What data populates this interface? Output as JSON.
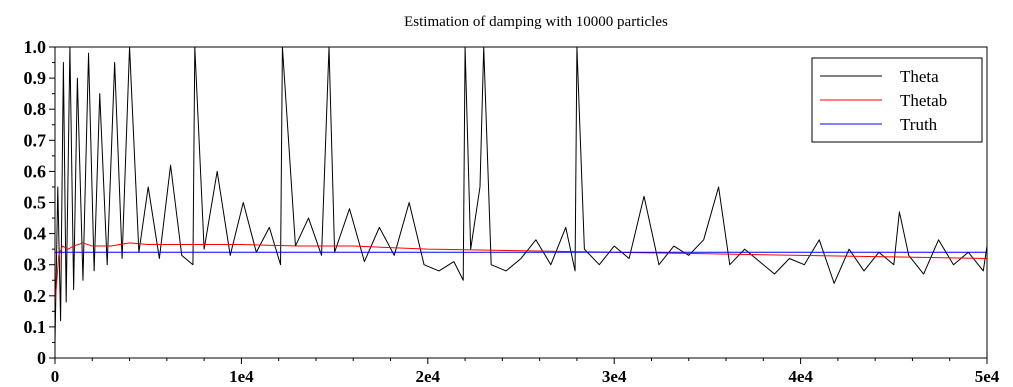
{
  "chart_data": {
    "type": "line",
    "title": "Estimation of damping with 10000 particles",
    "xlabel": "",
    "ylabel": "",
    "xlim": [
      0,
      50000
    ],
    "ylim": [
      0,
      1.0
    ],
    "x_ticks": [
      {
        "value": 0,
        "label": "0"
      },
      {
        "value": 10000,
        "label": "1e4"
      },
      {
        "value": 20000,
        "label": "2e4"
      },
      {
        "value": 30000,
        "label": "3e4"
      },
      {
        "value": 40000,
        "label": "4e4"
      },
      {
        "value": 50000,
        "label": "5e4"
      }
    ],
    "y_ticks": [
      {
        "value": 0,
        "label": "0"
      },
      {
        "value": 0.1,
        "label": "0.1"
      },
      {
        "value": 0.2,
        "label": "0.2"
      },
      {
        "value": 0.3,
        "label": "0.3"
      },
      {
        "value": 0.4,
        "label": "0.4"
      },
      {
        "value": 0.5,
        "label": "0.5"
      },
      {
        "value": 0.6,
        "label": "0.6"
      },
      {
        "value": 0.7,
        "label": "0.7"
      },
      {
        "value": 0.8,
        "label": "0.8"
      },
      {
        "value": 0.9,
        "label": "0.9"
      },
      {
        "value": 1.0,
        "label": "1.0"
      }
    ],
    "grid": false,
    "legend_position": "top-right",
    "series": [
      {
        "name": "Theta",
        "color": "#000000",
        "x": [
          0,
          150,
          300,
          450,
          600,
          800,
          1000,
          1200,
          1500,
          1800,
          2100,
          2400,
          2800,
          3200,
          3600,
          4000,
          4500,
          5000,
          5600,
          6200,
          6800,
          7400,
          7500,
          8000,
          8700,
          9400,
          10100,
          10800,
          11500,
          12100,
          12200,
          12900,
          13600,
          14300,
          14700,
          15000,
          15800,
          16600,
          17400,
          18200,
          19000,
          19800,
          20600,
          21400,
          21900,
          22000,
          22300,
          22800,
          23000,
          23400,
          24200,
          25000,
          25800,
          26600,
          27400,
          27900,
          28000,
          28400,
          29200,
          30000,
          30800,
          31600,
          32400,
          33200,
          34000,
          34800,
          35600,
          36200,
          37000,
          37800,
          38600,
          39400,
          40200,
          41000,
          41800,
          42600,
          43400,
          44200,
          45000,
          45300,
          45800,
          46600,
          47400,
          48200,
          49000,
          49800,
          50000
        ],
        "y": [
          0.05,
          0.55,
          0.12,
          0.95,
          0.18,
          1.0,
          0.22,
          0.9,
          0.25,
          0.98,
          0.28,
          0.85,
          0.3,
          0.95,
          0.32,
          1.0,
          0.34,
          0.55,
          0.32,
          0.62,
          0.33,
          0.3,
          1.0,
          0.35,
          0.6,
          0.33,
          0.5,
          0.34,
          0.42,
          0.3,
          1.0,
          0.36,
          0.45,
          0.33,
          1.0,
          0.34,
          0.48,
          0.31,
          0.42,
          0.33,
          0.5,
          0.3,
          0.28,
          0.31,
          0.25,
          1.0,
          0.35,
          0.55,
          1.0,
          0.3,
          0.28,
          0.32,
          0.38,
          0.3,
          0.42,
          0.28,
          1.0,
          0.35,
          0.3,
          0.36,
          0.32,
          0.52,
          0.3,
          0.36,
          0.33,
          0.38,
          0.55,
          0.3,
          0.35,
          0.31,
          0.27,
          0.32,
          0.3,
          0.38,
          0.24,
          0.35,
          0.28,
          0.34,
          0.3,
          0.47,
          0.33,
          0.27,
          0.38,
          0.3,
          0.34,
          0.28,
          0.36
        ]
      },
      {
        "name": "Thetab",
        "color": "#ff0000",
        "x": [
          0,
          200,
          400,
          700,
          1000,
          1500,
          2000,
          3000,
          4000,
          5000,
          7000,
          10000,
          13000,
          16000,
          20000,
          25000,
          30000,
          35000,
          40000,
          45000,
          50000
        ],
        "y": [
          0.17,
          0.33,
          0.36,
          0.35,
          0.36,
          0.37,
          0.36,
          0.36,
          0.37,
          0.365,
          0.365,
          0.365,
          0.36,
          0.36,
          0.35,
          0.345,
          0.34,
          0.335,
          0.33,
          0.325,
          0.32
        ]
      },
      {
        "name": "Truth",
        "color": "#0000ff",
        "x": [
          0,
          50000
        ],
        "y": [
          0.34,
          0.34
        ]
      }
    ]
  }
}
